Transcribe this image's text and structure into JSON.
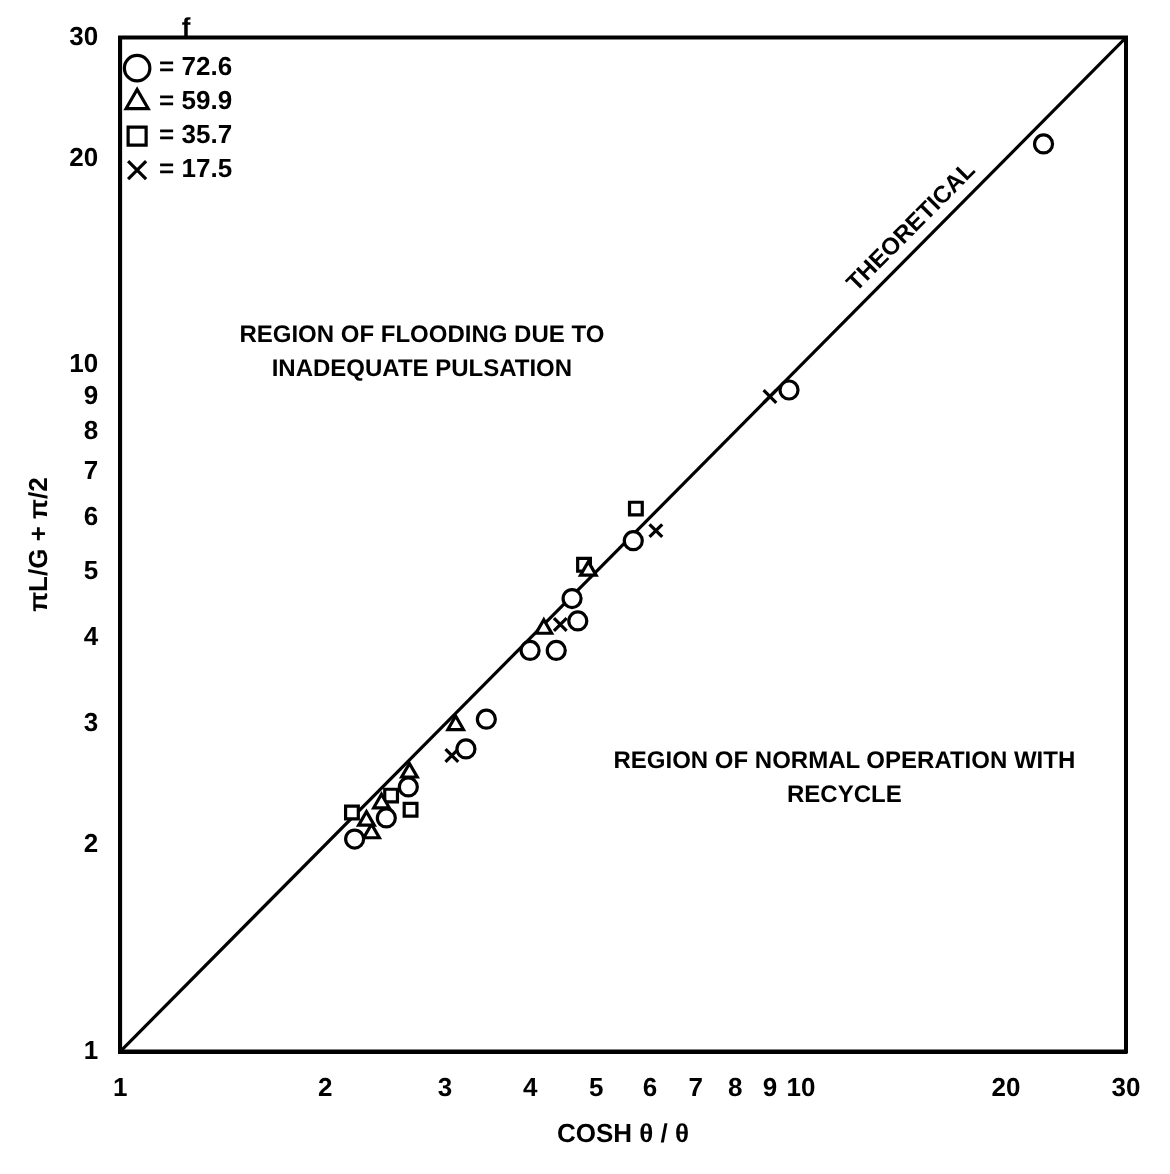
{
  "chart_data": {
    "type": "scatter",
    "xlabel": "COSH θ / θ",
    "ylabel": "πL/G + π/2",
    "legend_title": "f",
    "legend": "top left",
    "grid": false,
    "xlim": [
      1,
      30
    ],
    "ylim": [
      1,
      30
    ],
    "log": "xy",
    "xticks": [
      1,
      2,
      3,
      4,
      5,
      6,
      7,
      8,
      9,
      10,
      20,
      30
    ],
    "yticks": [
      1,
      2,
      3,
      4,
      5,
      6,
      7,
      8,
      9,
      10,
      20,
      30
    ],
    "annotations": [
      "REGION OF FLOODING DUE TO INADEQUATE PULSATION",
      "REGION OF NORMAL OPERATION WITH RECYCLE"
    ],
    "series": [
      {
        "name": "= 72.6",
        "color": "#000000",
        "marker": "circle",
        "x": [
          22.7,
          9.6,
          5.67,
          4.61,
          4.7,
          4.0,
          4.37,
          3.45,
          3.22,
          2.21,
          2.46,
          2.65
        ],
        "values": [
          21,
          9.2,
          5.55,
          4.57,
          4.24,
          3.84,
          3.84,
          3.05,
          2.76,
          2.04,
          2.19,
          2.43
        ]
      },
      {
        "name": "= 59.9",
        "color": "#000000",
        "marker": "triangle",
        "x": [
          4.87,
          4.19,
          3.11,
          2.34,
          2.3,
          2.42,
          2.66
        ],
        "values": [
          5.02,
          4.13,
          2.99,
          2.08,
          2.17,
          2.3,
          2.55
        ]
      },
      {
        "name": "= 35.7",
        "color": "#000000",
        "marker": "square",
        "x": [
          5.72,
          4.8,
          2.19,
          2.67,
          2.5
        ],
        "values": [
          6.18,
          5.12,
          2.23,
          2.25,
          2.36
        ]
      },
      {
        "name": "= 17.5",
        "color": "#000000",
        "marker": "cross",
        "x": [
          9.0,
          6.12,
          4.43,
          3.07
        ],
        "values": [
          9.0,
          5.74,
          4.19,
          2.7
        ]
      },
      {
        "name": "THEORETICAL",
        "type": "line",
        "color": "#000000",
        "marker": "none",
        "line_style": "solid",
        "x": [
          1,
          30
        ],
        "values": [
          1,
          30
        ]
      }
    ]
  }
}
